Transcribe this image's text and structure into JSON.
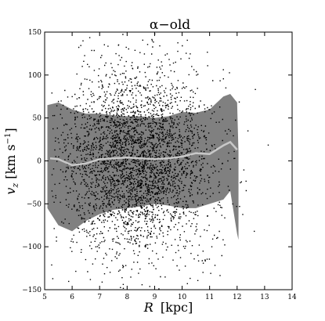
{
  "chart_data": {
    "type": "scatter",
    "title": "α−old",
    "xlabel_main": "R",
    "xlabel_unit": "[kpc]",
    "ylabel_main": "v",
    "ylabel_sub": "z",
    "ylabel_unit": "[km s",
    "ylabel_exp": "−1",
    "ylabel_close": "]",
    "xlim": [
      5,
      14
    ],
    "ylim": [
      -150,
      150
    ],
    "x_ticks": [
      "5",
      "6",
      "7",
      "8",
      "9",
      "10",
      "11",
      "12",
      "13",
      "14"
    ],
    "y_ticks": [
      "−150",
      "−100",
      "−50",
      "0",
      "50",
      "100",
      "150"
    ],
    "scatter": {
      "color": "#000000",
      "point_count": 9000,
      "x_center": 8.3,
      "x_spread": 1.35,
      "y_spread": 52,
      "x_range": [
        5.2,
        13.8
      ]
    },
    "dispersion_band": {
      "color": "#808080",
      "x": [
        5.1,
        5.5,
        6.0,
        6.5,
        7.0,
        7.5,
        8.0,
        8.5,
        9.0,
        9.5,
        10.0,
        10.5,
        11.0,
        11.5,
        11.75,
        12.0,
        12.05
      ],
      "upper": [
        65,
        68,
        60,
        55,
        55,
        53,
        52,
        52,
        50,
        52,
        57,
        56,
        60,
        75,
        78,
        68,
        10
      ],
      "lower": [
        -55,
        -75,
        -82,
        -70,
        -62,
        -57,
        -55,
        -53,
        -50,
        -52,
        -55,
        -55,
        -50,
        -45,
        -35,
        -85,
        -92
      ]
    },
    "mean_line": {
      "color": "#c8c8c8",
      "x": [
        5.2,
        5.5,
        6.0,
        6.5,
        7.0,
        7.5,
        8.0,
        8.5,
        9.0,
        9.5,
        10.0,
        10.5,
        11.0,
        11.5,
        11.75,
        12.0
      ],
      "y": [
        3,
        2,
        -5,
        -3,
        2,
        3,
        4,
        3,
        2,
        3,
        5,
        9,
        8,
        18,
        22,
        13
      ]
    }
  }
}
